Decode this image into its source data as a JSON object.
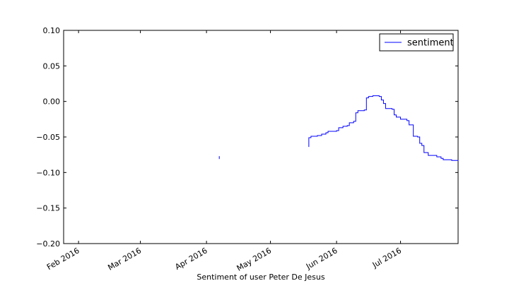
{
  "chart_data": {
    "type": "line",
    "title": "",
    "xlabel": "Sentiment of user Peter De Jesus",
    "ylabel": "",
    "x_is_date": true,
    "xlim": [
      "2016-01-25",
      "2016-07-28"
    ],
    "ylim": [
      -0.2,
      0.1
    ],
    "x_ticks": [
      "2016-02-01",
      "2016-03-01",
      "2016-04-01",
      "2016-05-01",
      "2016-06-01",
      "2016-07-01"
    ],
    "x_tick_labels": [
      "Feb 2016",
      "Mar 2016",
      "Apr 2016",
      "May 2016",
      "Jun 2016",
      "Jul 2016"
    ],
    "y_ticks": [
      0.1,
      0.05,
      0.0,
      -0.05,
      -0.1,
      -0.15,
      -0.2
    ],
    "y_tick_labels": [
      "0.10",
      "0.05",
      "0.00",
      "−0.05",
      "−0.10",
      "−0.15",
      "−0.20"
    ],
    "grid": false,
    "legend_position": "top-right",
    "series": [
      {
        "name": "sentiment",
        "color": "#0000ff",
        "segments": [
          [
            {
              "x": "2016-04-07",
              "y": -0.077
            },
            {
              "x": "2016-04-07",
              "y": -0.081
            }
          ],
          [
            {
              "x": "2016-05-19",
              "y": -0.064
            },
            {
              "x": "2016-05-19",
              "y": -0.051
            },
            {
              "x": "2016-05-20",
              "y": -0.049
            },
            {
              "x": "2016-05-23",
              "y": -0.048
            },
            {
              "x": "2016-05-25",
              "y": -0.046
            },
            {
              "x": "2016-05-27",
              "y": -0.044
            },
            {
              "x": "2016-05-28",
              "y": -0.042
            },
            {
              "x": "2016-06-01",
              "y": -0.041
            },
            {
              "x": "2016-06-02",
              "y": -0.037
            },
            {
              "x": "2016-06-04",
              "y": -0.035
            },
            {
              "x": "2016-06-06",
              "y": -0.034
            },
            {
              "x": "2016-06-07",
              "y": -0.03
            },
            {
              "x": "2016-06-09",
              "y": -0.028
            },
            {
              "x": "2016-06-10",
              "y": -0.016
            },
            {
              "x": "2016-06-11",
              "y": -0.013
            },
            {
              "x": "2016-06-14",
              "y": -0.012
            },
            {
              "x": "2016-06-15",
              "y": 0.005
            },
            {
              "x": "2016-06-16",
              "y": 0.007
            },
            {
              "x": "2016-06-18",
              "y": 0.008
            },
            {
              "x": "2016-06-21",
              "y": 0.007
            },
            {
              "x": "2016-06-22",
              "y": 0.002
            },
            {
              "x": "2016-06-23",
              "y": -0.003
            },
            {
              "x": "2016-06-24",
              "y": -0.01
            },
            {
              "x": "2016-06-27",
              "y": -0.011
            },
            {
              "x": "2016-06-28",
              "y": -0.019
            },
            {
              "x": "2016-06-29",
              "y": -0.022
            },
            {
              "x": "2016-07-01",
              "y": -0.025
            },
            {
              "x": "2016-07-04",
              "y": -0.027
            },
            {
              "x": "2016-07-05",
              "y": -0.033
            },
            {
              "x": "2016-07-07",
              "y": -0.049
            },
            {
              "x": "2016-07-09",
              "y": -0.05
            },
            {
              "x": "2016-07-10",
              "y": -0.059
            },
            {
              "x": "2016-07-11",
              "y": -0.062
            },
            {
              "x": "2016-07-12",
              "y": -0.072
            },
            {
              "x": "2016-07-14",
              "y": -0.076
            },
            {
              "x": "2016-07-18",
              "y": -0.078
            },
            {
              "x": "2016-07-20",
              "y": -0.08
            },
            {
              "x": "2016-07-21",
              "y": -0.082
            },
            {
              "x": "2016-07-25",
              "y": -0.083
            },
            {
              "x": "2016-07-28",
              "y": -0.084
            }
          ]
        ]
      }
    ]
  }
}
